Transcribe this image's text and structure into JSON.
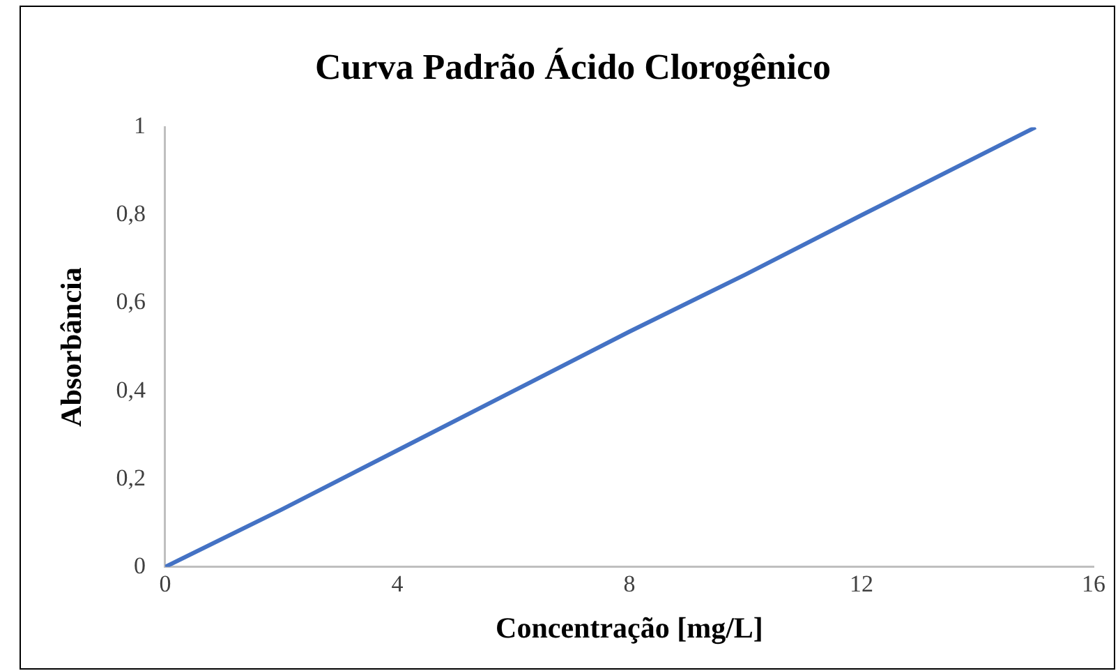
{
  "chart_data": {
    "type": "line",
    "title": "Curva Padrão Ácido Clorogênico",
    "xlabel": "Concentração [mg/L]",
    "ylabel": "Absorbância",
    "series": [
      {
        "color": "#4472c4",
        "x": [
          0,
          2,
          4,
          6,
          8,
          10,
          12,
          15
        ],
        "values": [
          0,
          0.13,
          0.265,
          0.4,
          0.535,
          0.665,
          0.8,
          1
        ]
      }
    ],
    "xlim": [
      0,
      16
    ],
    "xticks": [
      0,
      4,
      8,
      12,
      16
    ],
    "ylim": [
      0,
      1
    ],
    "yticks": [
      0,
      {
        "value": 0.2,
        "label": "0,2"
      },
      {
        "value": 0.4,
        "label": "0,4"
      },
      {
        "value": 0.6,
        "label": "0,6"
      },
      {
        "value": 0.8,
        "label": "0,8"
      },
      1
    ],
    "grid": false,
    "legend": false,
    "marker": "none",
    "line_style": "solid"
  }
}
